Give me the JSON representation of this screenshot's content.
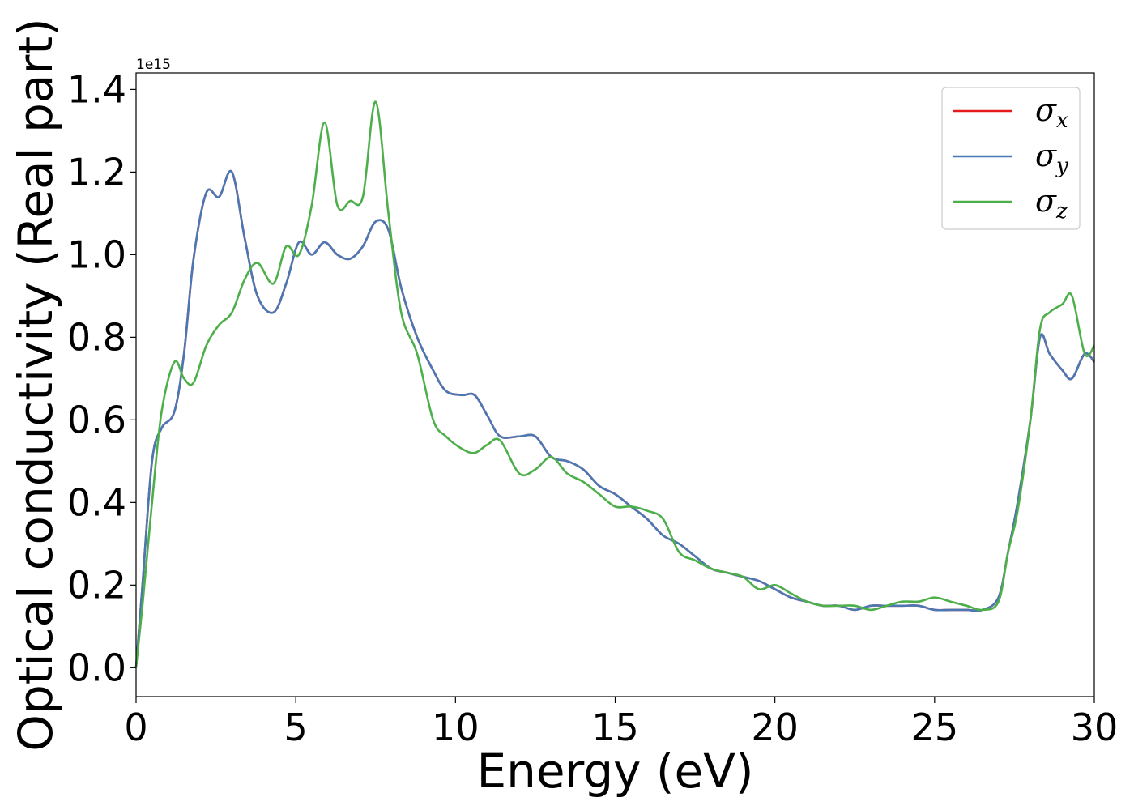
{
  "chart_data": {
    "type": "line",
    "title": "",
    "xlabel": "Energy (eV)",
    "ylabel": "Optical conductivity (Real part)",
    "y_offset_label": "1e15",
    "xlim": [
      0,
      30
    ],
    "ylim": [
      -0.07,
      1.44
    ],
    "xticks": [
      0,
      5,
      10,
      15,
      20,
      25,
      30
    ],
    "yticks": [
      0.0,
      0.2,
      0.4,
      0.6,
      0.8,
      1.0,
      1.2,
      1.4
    ],
    "grid": false,
    "legend_position": "top-right",
    "series": [
      {
        "name": "σx",
        "legend_base": "σ",
        "legend_sub": "x",
        "color": "#e41a1c",
        "x": [
          0,
          0.2,
          0.5,
          0.8,
          1.2,
          1.5,
          1.8,
          2.2,
          2.6,
          3.0,
          3.4,
          3.8,
          4.3,
          4.7,
          5.1,
          5.5,
          5.9,
          6.3,
          6.7,
          7.1,
          7.5,
          7.9,
          8.3,
          8.8,
          9.3,
          9.7,
          10.2,
          10.6,
          11.0,
          11.4,
          12.0,
          12.5,
          13.0,
          13.5,
          14.0,
          14.5,
          15.0,
          15.5,
          16.0,
          16.5,
          17.0,
          17.5,
          18.0,
          18.5,
          19.0,
          19.5,
          20.0,
          20.5,
          21.0,
          21.5,
          22.0,
          22.5,
          23.0,
          23.5,
          24.0,
          24.5,
          25.0,
          25.5,
          26.0,
          26.5,
          27.0,
          27.3,
          27.6,
          28.0,
          28.3,
          28.6,
          29.0,
          29.3,
          29.7,
          30.0
        ],
        "y": [
          0.0,
          0.2,
          0.5,
          0.58,
          0.62,
          0.76,
          0.99,
          1.15,
          1.14,
          1.2,
          1.04,
          0.9,
          0.86,
          0.93,
          1.03,
          1.0,
          1.03,
          1.0,
          0.99,
          1.02,
          1.08,
          1.06,
          0.92,
          0.8,
          0.72,
          0.67,
          0.66,
          0.66,
          0.61,
          0.56,
          0.56,
          0.56,
          0.51,
          0.5,
          0.48,
          0.44,
          0.42,
          0.39,
          0.36,
          0.32,
          0.3,
          0.27,
          0.24,
          0.23,
          0.22,
          0.21,
          0.19,
          0.17,
          0.16,
          0.15,
          0.15,
          0.14,
          0.15,
          0.15,
          0.15,
          0.15,
          0.14,
          0.14,
          0.14,
          0.14,
          0.17,
          0.28,
          0.4,
          0.6,
          0.8,
          0.76,
          0.72,
          0.7,
          0.76,
          0.74
        ]
      },
      {
        "name": "σy",
        "legend_base": "σ",
        "legend_sub": "y",
        "color": "#4a78b5",
        "x": [
          0,
          0.2,
          0.5,
          0.8,
          1.2,
          1.5,
          1.8,
          2.2,
          2.6,
          3.0,
          3.4,
          3.8,
          4.3,
          4.7,
          5.1,
          5.5,
          5.9,
          6.3,
          6.7,
          7.1,
          7.5,
          7.9,
          8.3,
          8.8,
          9.3,
          9.7,
          10.2,
          10.6,
          11.0,
          11.4,
          12.0,
          12.5,
          13.0,
          13.5,
          14.0,
          14.5,
          15.0,
          15.5,
          16.0,
          16.5,
          17.0,
          17.5,
          18.0,
          18.5,
          19.0,
          19.5,
          20.0,
          20.5,
          21.0,
          21.5,
          22.0,
          22.5,
          23.0,
          23.5,
          24.0,
          24.5,
          25.0,
          25.5,
          26.0,
          26.5,
          27.0,
          27.3,
          27.6,
          28.0,
          28.3,
          28.6,
          29.0,
          29.3,
          29.7,
          30.0
        ],
        "y": [
          0.0,
          0.2,
          0.5,
          0.58,
          0.62,
          0.76,
          0.99,
          1.15,
          1.14,
          1.2,
          1.04,
          0.9,
          0.86,
          0.93,
          1.03,
          1.0,
          1.03,
          1.0,
          0.99,
          1.02,
          1.08,
          1.06,
          0.92,
          0.8,
          0.72,
          0.67,
          0.66,
          0.66,
          0.61,
          0.56,
          0.56,
          0.56,
          0.51,
          0.5,
          0.48,
          0.44,
          0.42,
          0.39,
          0.36,
          0.32,
          0.3,
          0.27,
          0.24,
          0.23,
          0.22,
          0.21,
          0.19,
          0.17,
          0.16,
          0.15,
          0.15,
          0.14,
          0.15,
          0.15,
          0.15,
          0.15,
          0.14,
          0.14,
          0.14,
          0.14,
          0.17,
          0.28,
          0.4,
          0.6,
          0.8,
          0.76,
          0.72,
          0.7,
          0.76,
          0.74
        ]
      },
      {
        "name": "σz",
        "legend_base": "σ",
        "legend_sub": "z",
        "color": "#4daf4a",
        "x": [
          0,
          0.2,
          0.5,
          0.8,
          1.2,
          1.5,
          1.8,
          2.2,
          2.6,
          3.0,
          3.4,
          3.8,
          4.3,
          4.7,
          5.1,
          5.5,
          5.9,
          6.3,
          6.7,
          7.1,
          7.5,
          7.9,
          8.3,
          8.8,
          9.3,
          9.7,
          10.2,
          10.6,
          11.0,
          11.4,
          12.0,
          12.5,
          13.0,
          13.5,
          14.0,
          14.5,
          15.0,
          15.5,
          16.0,
          16.5,
          17.0,
          17.5,
          18.0,
          18.5,
          19.0,
          19.5,
          20.0,
          20.5,
          21.0,
          21.5,
          22.0,
          22.5,
          23.0,
          23.5,
          24.0,
          24.5,
          25.0,
          25.5,
          26.0,
          26.5,
          27.0,
          27.3,
          27.6,
          28.0,
          28.3,
          28.6,
          29.0,
          29.3,
          29.7,
          30.0
        ],
        "y": [
          0.0,
          0.15,
          0.4,
          0.62,
          0.74,
          0.7,
          0.69,
          0.78,
          0.83,
          0.86,
          0.94,
          0.98,
          0.93,
          1.02,
          1.0,
          1.12,
          1.32,
          1.12,
          1.13,
          1.14,
          1.37,
          1.1,
          0.86,
          0.76,
          0.6,
          0.56,
          0.53,
          0.52,
          0.54,
          0.55,
          0.47,
          0.48,
          0.51,
          0.47,
          0.45,
          0.42,
          0.39,
          0.39,
          0.38,
          0.36,
          0.28,
          0.26,
          0.24,
          0.23,
          0.22,
          0.19,
          0.2,
          0.18,
          0.16,
          0.15,
          0.15,
          0.15,
          0.14,
          0.15,
          0.16,
          0.16,
          0.17,
          0.16,
          0.15,
          0.14,
          0.16,
          0.28,
          0.38,
          0.6,
          0.82,
          0.86,
          0.88,
          0.9,
          0.76,
          0.78
        ]
      }
    ]
  }
}
